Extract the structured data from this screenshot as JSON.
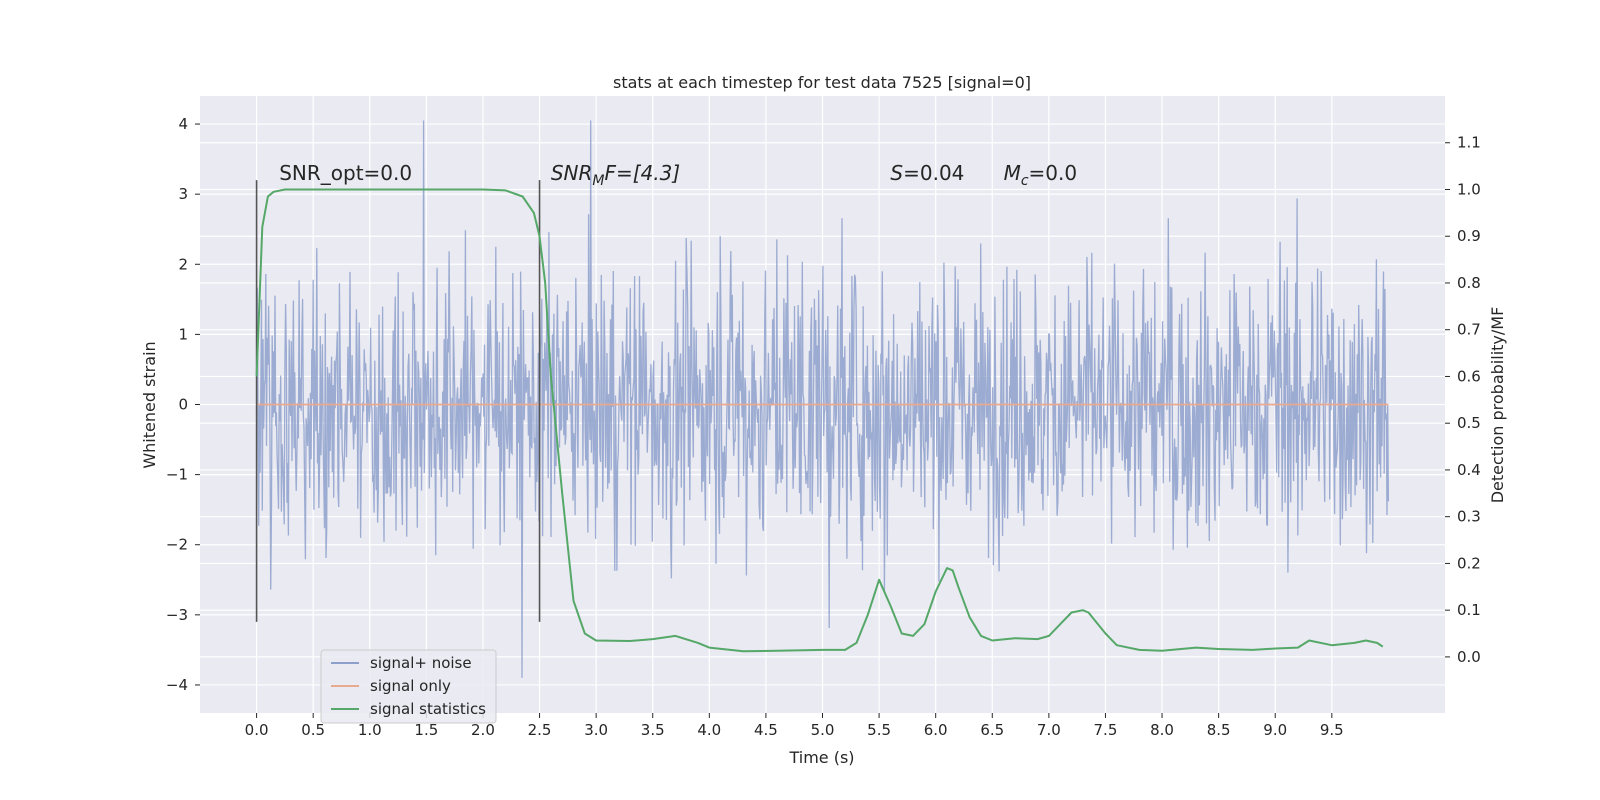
{
  "chart_data": {
    "type": "line",
    "title": "stats at each timestep for test data 7525 [signal=0]",
    "xlabel": "Time (s)",
    "ylabel": "Whitened strain",
    "y2label": "Detection probability/MF",
    "xlim": [
      -0.5,
      10.5
    ],
    "ylim": [
      -4.4,
      4.4
    ],
    "y2lim": [
      -0.12,
      1.2
    ],
    "x_ticks": [
      "0.0",
      "0.5",
      "1.0",
      "1.5",
      "2.0",
      "2.5",
      "3.0",
      "3.5",
      "4.0",
      "4.5",
      "5.0",
      "5.5",
      "6.0",
      "6.5",
      "7.0",
      "7.5",
      "8.0",
      "8.5",
      "9.0",
      "9.5"
    ],
    "y_ticks": [
      "4",
      "3",
      "2",
      "1",
      "0",
      "−1",
      "−2",
      "−3",
      "−4"
    ],
    "y2_ticks": [
      "1.1",
      "1.0",
      "0.9",
      "0.8",
      "0.7",
      "0.6",
      "0.5",
      "0.4",
      "0.3",
      "0.2",
      "0.1",
      "0.0"
    ],
    "grid": true,
    "legend_position": "lower-left",
    "series": [
      {
        "name": "signal+ noise",
        "color": "#8da0cb",
        "kind": "noise",
        "x_range": [
          0,
          10
        ],
        "y_envelope": [
          -3.9,
          4.05
        ]
      },
      {
        "name": "signal only",
        "color": "#e8a98f",
        "x": [
          0,
          10
        ],
        "y": [
          0,
          0
        ]
      },
      {
        "name": "signal statistics",
        "color": "#55a868",
        "x": [
          0.0,
          0.05,
          0.1,
          0.15,
          0.25,
          0.5,
          1.0,
          1.5,
          2.0,
          2.2,
          2.35,
          2.45,
          2.5,
          2.55,
          2.6,
          2.7,
          2.8,
          2.9,
          3.0,
          3.3,
          3.5,
          3.7,
          3.9,
          4.0,
          4.3,
          4.6,
          5.0,
          5.2,
          5.3,
          5.4,
          5.5,
          5.6,
          5.7,
          5.8,
          5.9,
          6.0,
          6.1,
          6.15,
          6.2,
          6.3,
          6.4,
          6.5,
          6.7,
          6.9,
          7.0,
          7.1,
          7.2,
          7.3,
          7.35,
          7.4,
          7.5,
          7.6,
          7.8,
          8.0,
          8.3,
          8.5,
          8.8,
          9.0,
          9.2,
          9.3,
          9.5,
          9.7,
          9.8,
          9.9,
          9.95
        ],
        "y": [
          0.6,
          0.92,
          0.985,
          0.995,
          1.0,
          1.0,
          1.0,
          1.0,
          1.0,
          0.998,
          0.985,
          0.95,
          0.9,
          0.8,
          0.6,
          0.35,
          0.12,
          0.05,
          0.035,
          0.034,
          0.038,
          0.045,
          0.03,
          0.02,
          0.012,
          0.013,
          0.015,
          0.015,
          0.03,
          0.09,
          0.165,
          0.11,
          0.05,
          0.045,
          0.07,
          0.14,
          0.19,
          0.185,
          0.15,
          0.085,
          0.045,
          0.035,
          0.04,
          0.038,
          0.045,
          0.07,
          0.095,
          0.1,
          0.095,
          0.08,
          0.05,
          0.025,
          0.015,
          0.013,
          0.02,
          0.017,
          0.015,
          0.018,
          0.02,
          0.035,
          0.025,
          0.03,
          0.035,
          0.03,
          0.022
        ]
      }
    ],
    "vlines": [
      0.0,
      2.5
    ],
    "annotations": [
      {
        "text": "SNR_opt=0.0",
        "x": 0.2,
        "y": 3.2,
        "italic": false
      },
      {
        "text": "SNR_MF=[4.3]",
        "x": 2.6,
        "y": 3.2,
        "italic": true,
        "parts": [
          [
            "SNR",
            "normal"
          ],
          [
            "M",
            "sub"
          ],
          [
            "F=[4.3]",
            "normal"
          ]
        ]
      },
      {
        "text": "S=0.04",
        "x": 5.6,
        "y": 3.2,
        "italic": true,
        "parts": [
          [
            "S",
            "normal"
          ],
          [
            "=0.04",
            "upright"
          ]
        ]
      },
      {
        "text": "M_c=0.0",
        "x": 6.6,
        "y": 3.2,
        "italic": true,
        "parts": [
          [
            "M",
            "normal"
          ],
          [
            "c",
            "sub"
          ],
          [
            "=0.0",
            "upright"
          ]
        ]
      }
    ]
  }
}
